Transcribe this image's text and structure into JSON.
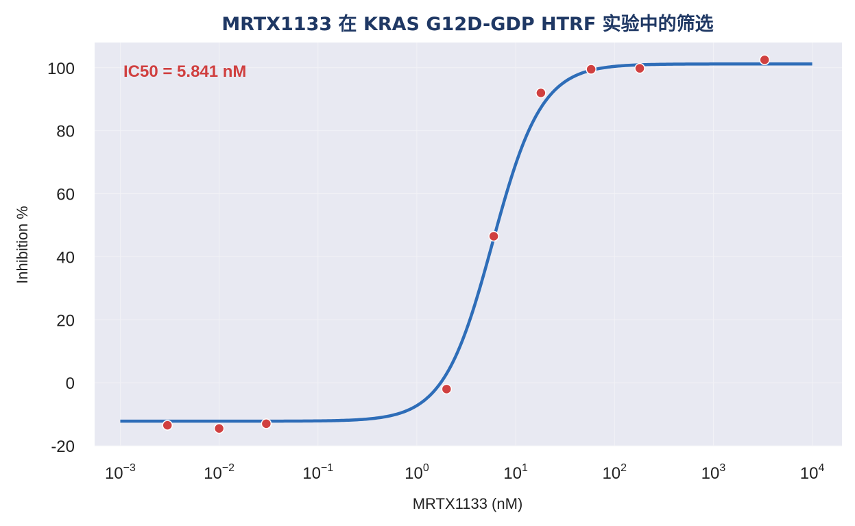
{
  "chart_data": {
    "type": "scatter",
    "title": "MRTX1133 在 KRAS G12D-GDP HTRF 实验中的筛选",
    "xlabel": "MRTX1133 (nM)",
    "ylabel": "Inhibition %",
    "xscale": "log",
    "xlim": [
      0.00055,
      20000
    ],
    "ylim": [
      -20,
      108
    ],
    "x_ticks": [
      {
        "base": "10",
        "exp": "−3",
        "value": 0.001
      },
      {
        "base": "10",
        "exp": "−2",
        "value": 0.01
      },
      {
        "base": "10",
        "exp": "−1",
        "value": 0.1
      },
      {
        "base": "10",
        "exp": "0",
        "value": 1
      },
      {
        "base": "10",
        "exp": "1",
        "value": 10
      },
      {
        "base": "10",
        "exp": "2",
        "value": 100
      },
      {
        "base": "10",
        "exp": "3",
        "value": 1000
      },
      {
        "base": "10",
        "exp": "4",
        "value": 10000
      }
    ],
    "y_ticks": [
      "-20",
      "0",
      "20",
      "40",
      "60",
      "80",
      "100"
    ],
    "grid": true,
    "points": {
      "x": [
        0.003,
        0.01,
        0.03,
        2,
        6,
        18,
        58,
        180,
        3300
      ],
      "y": [
        -13.5,
        -14.5,
        -13,
        -2,
        46.5,
        92,
        99.5,
        99.8,
        102.5
      ]
    },
    "fit": {
      "model": "4PL",
      "bottom": -12.2,
      "top": 101.2,
      "ic50": 5.841,
      "hill": 1.75,
      "x_range": [
        0.001,
        10000
      ]
    },
    "annotation": "IC50 = 5.841 nM",
    "colors": {
      "background": "#e8e9f2",
      "curve": "#2e6db8",
      "points": "#d04040",
      "title": "#1f3864",
      "annotation": "#d04040"
    }
  }
}
